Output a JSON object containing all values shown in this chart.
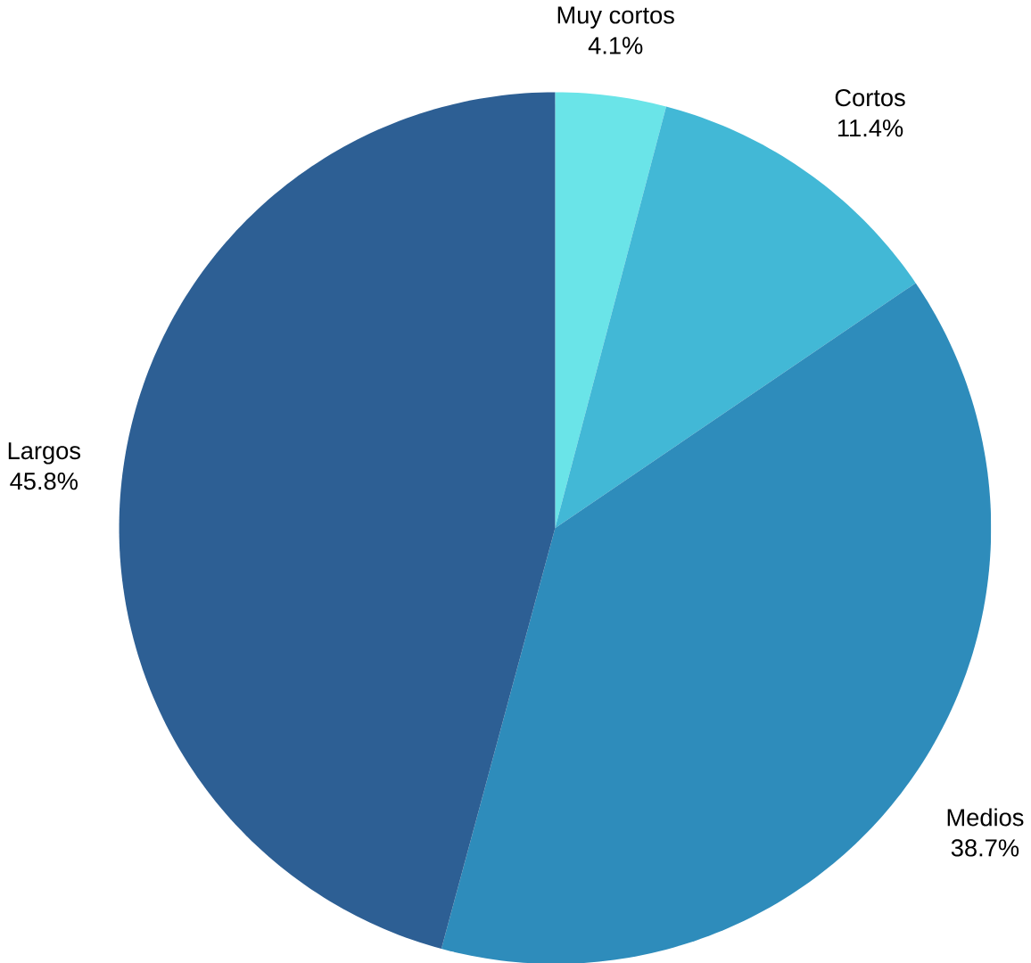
{
  "chart_data": {
    "type": "pie",
    "categories": [
      "Muy cortos",
      "Cortos",
      "Medios",
      "Largos"
    ],
    "values": [
      4.1,
      11.4,
      38.7,
      45.8
    ],
    "value_labels": [
      "4.1%",
      "11.4%",
      "38.7%",
      "45.8%"
    ],
    "colors": [
      "#6ae4e8",
      "#42b8d6",
      "#2e8cbb",
      "#2d5f94"
    ]
  }
}
